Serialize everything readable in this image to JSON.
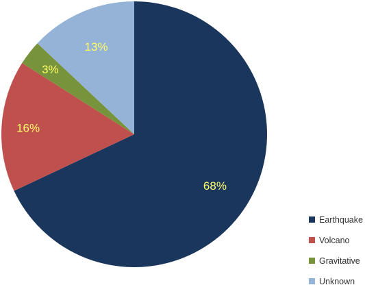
{
  "chart_data": {
    "type": "pie",
    "title": "",
    "categories": [
      "Earthquake",
      "Volcano",
      "Gravitative",
      "Unknown"
    ],
    "values": [
      68,
      16,
      3,
      13
    ],
    "data_labels": [
      "68%",
      "16%",
      "3%",
      "13%"
    ],
    "colors": [
      "#1b365d",
      "#c0504d",
      "#77933c",
      "#95b3d7"
    ],
    "label_color": "#ffff66",
    "start": "12 o'clock",
    "direction": "clockwise",
    "legend": {
      "placement": "right-bottom",
      "items": [
        "Earthquake",
        "Volcano",
        "Gravitative",
        "Unknown"
      ]
    }
  }
}
